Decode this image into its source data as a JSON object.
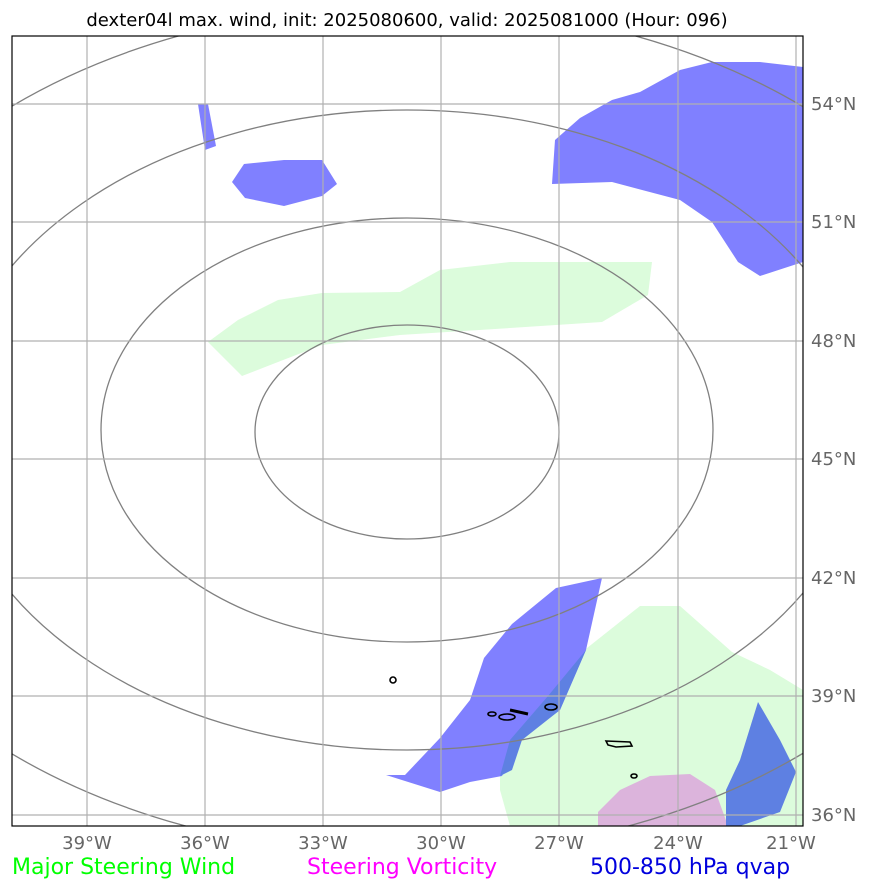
{
  "chart_data": {
    "type": "map",
    "title": "dexter04l max. wind, init: 2025080600, valid: 2025081000 (Hour: 096)",
    "x_ticks": [
      "39°W",
      "36°W",
      "33°W",
      "30°W",
      "27°W",
      "24°W",
      "21°W"
    ],
    "y_ticks": [
      "54°N",
      "51°N",
      "48°N",
      "45°N",
      "42°N",
      "39°N",
      "36°N"
    ],
    "lon_range": [
      -41,
      -21
    ],
    "lat_range": [
      35.7,
      55.8
    ],
    "grid": true,
    "legend": [
      {
        "label": "Major Steering Wind",
        "color": "#00ff00"
      },
      {
        "label": "Steering Vorticity",
        "color": "#ff00ff"
      },
      {
        "label": "500-850 hPa qvap",
        "color": "#0000dd"
      }
    ],
    "colors": {
      "qvap_fill": "#8080ff",
      "steering_wind_fill": "#dcfcdc",
      "vorticity_fill": "#dcb4dc",
      "overlap_fill": "#5e80e2",
      "contour": "#808080",
      "grid": "#b0b0b0"
    }
  }
}
